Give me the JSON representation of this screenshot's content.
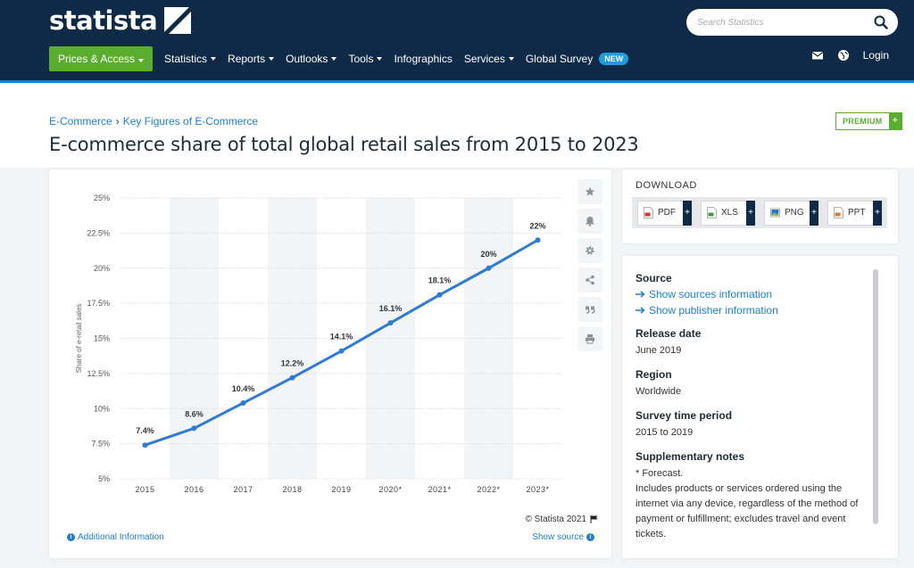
{
  "header": {
    "logo_text": "statista",
    "search_placeholder": "Search Statistics",
    "nav": [
      {
        "label": "Prices & Access",
        "dropdown": true
      },
      {
        "label": "Statistics",
        "dropdown": true
      },
      {
        "label": "Reports",
        "dropdown": true
      },
      {
        "label": "Outlooks",
        "dropdown": true
      },
      {
        "label": "Tools",
        "dropdown": true
      },
      {
        "label": "Infographics",
        "dropdown": false
      },
      {
        "label": "Services",
        "dropdown": true
      },
      {
        "label": "Global Survey",
        "dropdown": false
      }
    ],
    "new_badge": "NEW",
    "login": "Login",
    "colors": {
      "navy": "#0f2a46",
      "green": "#5aad2d",
      "blue": "#1b7fd4"
    }
  },
  "breadcrumb": {
    "items": [
      "E-Commerce",
      "Key Figures of E-Commerce"
    ],
    "separator": "›"
  },
  "title": "E-commerce share of total global retail sales from 2015 to 2023",
  "premium": {
    "label": "PREMIUM",
    "plus": "+"
  },
  "chart_data": {
    "type": "line",
    "title": "",
    "xlabel": "",
    "ylabel": "Share of e-retail sales",
    "categories": [
      "2015",
      "2016",
      "2017",
      "2018",
      "2019",
      "2020*",
      "2021*",
      "2022*",
      "2023*"
    ],
    "values": [
      7.4,
      8.6,
      10.4,
      12.2,
      14.1,
      16.1,
      18.1,
      20,
      22
    ],
    "data_labels": [
      "7.4%",
      "8.6%",
      "10.4%",
      "12.2%",
      "14.1%",
      "16.1%",
      "18.1%",
      "20%",
      "22%"
    ],
    "ylim": [
      5,
      25
    ],
    "yticks": [
      5,
      7.5,
      10,
      12.5,
      15,
      17.5,
      20,
      22.5,
      25
    ],
    "ytick_labels": [
      "5%",
      "7.5%",
      "10%",
      "12.5%",
      "15%",
      "17.5%",
      "20%",
      "22.5%",
      "25%"
    ],
    "grid": true,
    "line_color": "#2e7bd6"
  },
  "chart_footer": {
    "copyright": "© Statista 2021",
    "additional_info": "Additional Information",
    "show_source": "Show source"
  },
  "tools": [
    "star-icon",
    "bell-icon",
    "gear-icon",
    "share-icon",
    "quote-icon",
    "print-icon"
  ],
  "download": {
    "title": "DOWNLOAD",
    "buttons": [
      {
        "label": "PDF",
        "color": "#d9342b"
      },
      {
        "label": "XLS",
        "color": "#3f9b3a"
      },
      {
        "label": "PNG",
        "color": "#2a73c9"
      },
      {
        "label": "PPT",
        "color": "#e0772b"
      }
    ]
  },
  "info": {
    "source_h": "Source",
    "source_links": [
      "Show sources information",
      "Show publisher information"
    ],
    "release_h": "Release date",
    "release_v": "June 2019",
    "region_h": "Region",
    "region_v": "Worldwide",
    "survey_h": "Survey time period",
    "survey_v": "2015 to 2019",
    "notes_h": "Supplementary notes",
    "notes_v1": "* Forecast.",
    "notes_v2": "Includes products or services ordered using the internet via any device, regardless of the method of payment or fulfillment; excludes travel and event tickets."
  }
}
